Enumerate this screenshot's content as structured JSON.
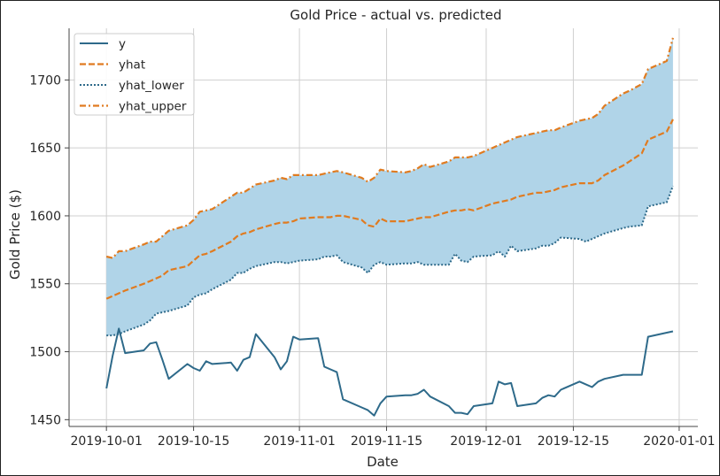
{
  "chart_data": {
    "type": "line",
    "title": "Gold Price - actual vs. predicted",
    "xlabel": "Date",
    "ylabel": "Gold Price ($)",
    "xlim": [
      "2019-09-25",
      "2020-01-04"
    ],
    "ylim": [
      1445,
      1738
    ],
    "x_ticks": [
      "2019-10-01",
      "2019-10-15",
      "2019-11-01",
      "2019-11-15",
      "2019-12-01",
      "2019-12-15",
      "2020-01-01"
    ],
    "y_ticks": [
      1450,
      1500,
      1550,
      1600,
      1650,
      1700
    ],
    "grid": true,
    "legend_position": "top-left",
    "colors": {
      "y": "#2e6a8a",
      "yhat": "#e07b20",
      "yhat_lower": "#2e6a8a",
      "yhat_upper": "#e07b20",
      "band": "#b0d4e8"
    },
    "series": [
      {
        "name": "y",
        "style": "solid",
        "points": [
          [
            "2019-10-01",
            1473
          ],
          [
            "2019-10-02",
            1497
          ],
          [
            "2019-10-03",
            1517
          ],
          [
            "2019-10-04",
            1499
          ],
          [
            "2019-10-07",
            1501
          ],
          [
            "2019-10-08",
            1506
          ],
          [
            "2019-10-09",
            1507
          ],
          [
            "2019-10-10",
            1494
          ],
          [
            "2019-10-11",
            1480
          ],
          [
            "2019-10-14",
            1491
          ],
          [
            "2019-10-15",
            1488
          ],
          [
            "2019-10-16",
            1486
          ],
          [
            "2019-10-17",
            1493
          ],
          [
            "2019-10-18",
            1491
          ],
          [
            "2019-10-21",
            1492
          ],
          [
            "2019-10-22",
            1486
          ],
          [
            "2019-10-23",
            1494
          ],
          [
            "2019-10-24",
            1496
          ],
          [
            "2019-10-25",
            1513
          ],
          [
            "2019-10-28",
            1496
          ],
          [
            "2019-10-29",
            1487
          ],
          [
            "2019-10-30",
            1493
          ],
          [
            "2019-10-31",
            1511
          ],
          [
            "2019-11-01",
            1509
          ],
          [
            "2019-11-04",
            1510
          ],
          [
            "2019-11-05",
            1489
          ],
          [
            "2019-11-06",
            1487
          ],
          [
            "2019-11-07",
            1485
          ],
          [
            "2019-11-08",
            1465
          ],
          [
            "2019-11-11",
            1459
          ],
          [
            "2019-11-12",
            1457
          ],
          [
            "2019-11-13",
            1453
          ],
          [
            "2019-11-14",
            1462
          ],
          [
            "2019-11-15",
            1467
          ],
          [
            "2019-11-18",
            1468
          ],
          [
            "2019-11-19",
            1468
          ],
          [
            "2019-11-20",
            1469
          ],
          [
            "2019-11-21",
            1472
          ],
          [
            "2019-11-22",
            1467
          ],
          [
            "2019-11-25",
            1460
          ],
          [
            "2019-11-26",
            1455
          ],
          [
            "2019-11-27",
            1455
          ],
          [
            "2019-11-28",
            1454
          ],
          [
            "2019-11-29",
            1460
          ],
          [
            "2019-12-02",
            1462
          ],
          [
            "2019-12-03",
            1478
          ],
          [
            "2019-12-04",
            1476
          ],
          [
            "2019-12-05",
            1477
          ],
          [
            "2019-12-06",
            1460
          ],
          [
            "2019-12-09",
            1462
          ],
          [
            "2019-12-10",
            1466
          ],
          [
            "2019-12-11",
            1468
          ],
          [
            "2019-12-12",
            1467
          ],
          [
            "2019-12-13",
            1472
          ],
          [
            "2019-12-16",
            1478
          ],
          [
            "2019-12-17",
            1476
          ],
          [
            "2019-12-18",
            1474
          ],
          [
            "2019-12-19",
            1478
          ],
          [
            "2019-12-20",
            1480
          ],
          [
            "2019-12-23",
            1483
          ],
          [
            "2019-12-24",
            1483
          ],
          [
            "2019-12-26",
            1483
          ],
          [
            "2019-12-27",
            1511
          ],
          [
            "2019-12-30",
            1514
          ],
          [
            "2019-12-31",
            1515
          ]
        ]
      },
      {
        "name": "yhat",
        "style": "dashed",
        "points": [
          [
            "2019-10-01",
            1539
          ],
          [
            "2019-10-02",
            1541
          ],
          [
            "2019-10-03",
            1543
          ],
          [
            "2019-10-04",
            1545
          ],
          [
            "2019-10-07",
            1550
          ],
          [
            "2019-10-08",
            1552
          ],
          [
            "2019-10-09",
            1554
          ],
          [
            "2019-10-10",
            1556
          ],
          [
            "2019-10-11",
            1560
          ],
          [
            "2019-10-14",
            1563
          ],
          [
            "2019-10-15",
            1567
          ],
          [
            "2019-10-16",
            1571
          ],
          [
            "2019-10-17",
            1572
          ],
          [
            "2019-10-18",
            1574
          ],
          [
            "2019-10-21",
            1581
          ],
          [
            "2019-10-22",
            1585
          ],
          [
            "2019-10-23",
            1587
          ],
          [
            "2019-10-24",
            1588
          ],
          [
            "2019-10-25",
            1590
          ],
          [
            "2019-10-28",
            1594
          ],
          [
            "2019-10-29",
            1595
          ],
          [
            "2019-10-30",
            1595
          ],
          [
            "2019-10-31",
            1596
          ],
          [
            "2019-11-01",
            1598
          ],
          [
            "2019-11-04",
            1599
          ],
          [
            "2019-11-05",
            1599
          ],
          [
            "2019-11-06",
            1599
          ],
          [
            "2019-11-07",
            1600
          ],
          [
            "2019-11-08",
            1600
          ],
          [
            "2019-11-11",
            1597
          ],
          [
            "2019-11-12",
            1593
          ],
          [
            "2019-11-13",
            1592
          ],
          [
            "2019-11-14",
            1598
          ],
          [
            "2019-11-15",
            1596
          ],
          [
            "2019-11-18",
            1596
          ],
          [
            "2019-11-19",
            1597
          ],
          [
            "2019-11-20",
            1598
          ],
          [
            "2019-11-21",
            1599
          ],
          [
            "2019-11-22",
            1599
          ],
          [
            "2019-11-25",
            1603
          ],
          [
            "2019-11-26",
            1604
          ],
          [
            "2019-11-27",
            1604
          ],
          [
            "2019-11-28",
            1605
          ],
          [
            "2019-11-29",
            1604
          ],
          [
            "2019-12-02",
            1609
          ],
          [
            "2019-12-03",
            1610
          ],
          [
            "2019-12-04",
            1611
          ],
          [
            "2019-12-05",
            1612
          ],
          [
            "2019-12-06",
            1614
          ],
          [
            "2019-12-09",
            1617
          ],
          [
            "2019-12-10",
            1617
          ],
          [
            "2019-12-11",
            1618
          ],
          [
            "2019-12-12",
            1619
          ],
          [
            "2019-12-13",
            1621
          ],
          [
            "2019-12-16",
            1624
          ],
          [
            "2019-12-17",
            1624
          ],
          [
            "2019-12-18",
            1624
          ],
          [
            "2019-12-19",
            1626
          ],
          [
            "2019-12-20",
            1630
          ],
          [
            "2019-12-23",
            1637
          ],
          [
            "2019-12-24",
            1640
          ],
          [
            "2019-12-26",
            1646
          ],
          [
            "2019-12-27",
            1656
          ],
          [
            "2019-12-30",
            1662
          ],
          [
            "2019-12-31",
            1671
          ]
        ]
      },
      {
        "name": "yhat_lower",
        "style": "dotted",
        "points": [
          [
            "2019-10-01",
            1512
          ],
          [
            "2019-10-02",
            1512
          ],
          [
            "2019-10-03",
            1513
          ],
          [
            "2019-10-04",
            1515
          ],
          [
            "2019-10-07",
            1520
          ],
          [
            "2019-10-08",
            1523
          ],
          [
            "2019-10-09",
            1528
          ],
          [
            "2019-10-10",
            1529
          ],
          [
            "2019-10-11",
            1530
          ],
          [
            "2019-10-14",
            1534
          ],
          [
            "2019-10-15",
            1540
          ],
          [
            "2019-10-16",
            1542
          ],
          [
            "2019-10-17",
            1543
          ],
          [
            "2019-10-18",
            1546
          ],
          [
            "2019-10-21",
            1553
          ],
          [
            "2019-10-22",
            1558
          ],
          [
            "2019-10-23",
            1558
          ],
          [
            "2019-10-24",
            1561
          ],
          [
            "2019-10-25",
            1563
          ],
          [
            "2019-10-28",
            1566
          ],
          [
            "2019-10-29",
            1566
          ],
          [
            "2019-10-30",
            1565
          ],
          [
            "2019-10-31",
            1566
          ],
          [
            "2019-11-01",
            1567
          ],
          [
            "2019-11-04",
            1568
          ],
          [
            "2019-11-05",
            1570
          ],
          [
            "2019-11-06",
            1570
          ],
          [
            "2019-11-07",
            1571
          ],
          [
            "2019-11-08",
            1566
          ],
          [
            "2019-11-11",
            1562
          ],
          [
            "2019-11-12",
            1558
          ],
          [
            "2019-11-13",
            1564
          ],
          [
            "2019-11-14",
            1566
          ],
          [
            "2019-11-15",
            1564
          ],
          [
            "2019-11-18",
            1565
          ],
          [
            "2019-11-19",
            1565
          ],
          [
            "2019-11-20",
            1566
          ],
          [
            "2019-11-21",
            1564
          ],
          [
            "2019-11-22",
            1564
          ],
          [
            "2019-11-25",
            1564
          ],
          [
            "2019-11-26",
            1572
          ],
          [
            "2019-11-27",
            1567
          ],
          [
            "2019-11-28",
            1566
          ],
          [
            "2019-11-29",
            1570
          ],
          [
            "2019-12-02",
            1571
          ],
          [
            "2019-12-03",
            1574
          ],
          [
            "2019-12-04",
            1570
          ],
          [
            "2019-12-05",
            1578
          ],
          [
            "2019-12-06",
            1574
          ],
          [
            "2019-12-09",
            1576
          ],
          [
            "2019-12-10",
            1578
          ],
          [
            "2019-12-11",
            1578
          ],
          [
            "2019-12-12",
            1580
          ],
          [
            "2019-12-13",
            1584
          ],
          [
            "2019-12-16",
            1583
          ],
          [
            "2019-12-17",
            1581
          ],
          [
            "2019-12-18",
            1583
          ],
          [
            "2019-12-19",
            1585
          ],
          [
            "2019-12-20",
            1587
          ],
          [
            "2019-12-23",
            1591
          ],
          [
            "2019-12-24",
            1592
          ],
          [
            "2019-12-26",
            1593
          ],
          [
            "2019-12-27",
            1607
          ],
          [
            "2019-12-30",
            1610
          ],
          [
            "2019-12-31",
            1622
          ]
        ]
      },
      {
        "name": "yhat_upper",
        "style": "dashdot",
        "points": [
          [
            "2019-10-01",
            1570
          ],
          [
            "2019-10-02",
            1569
          ],
          [
            "2019-10-03",
            1574
          ],
          [
            "2019-10-04",
            1574
          ],
          [
            "2019-10-07",
            1579
          ],
          [
            "2019-10-08",
            1581
          ],
          [
            "2019-10-09",
            1581
          ],
          [
            "2019-10-10",
            1585
          ],
          [
            "2019-10-11",
            1589
          ],
          [
            "2019-10-14",
            1593
          ],
          [
            "2019-10-15",
            1597
          ],
          [
            "2019-10-16",
            1603
          ],
          [
            "2019-10-17",
            1604
          ],
          [
            "2019-10-18",
            1605
          ],
          [
            "2019-10-21",
            1614
          ],
          [
            "2019-10-22",
            1617
          ],
          [
            "2019-10-23",
            1617
          ],
          [
            "2019-10-24",
            1620
          ],
          [
            "2019-10-25",
            1623
          ],
          [
            "2019-10-28",
            1626
          ],
          [
            "2019-10-29",
            1628
          ],
          [
            "2019-10-30",
            1627
          ],
          [
            "2019-10-31",
            1630
          ],
          [
            "2019-11-01",
            1630
          ],
          [
            "2019-11-04",
            1630
          ],
          [
            "2019-11-05",
            1631
          ],
          [
            "2019-11-06",
            1632
          ],
          [
            "2019-11-07",
            1633
          ],
          [
            "2019-11-08",
            1632
          ],
          [
            "2019-11-11",
            1628
          ],
          [
            "2019-11-12",
            1625
          ],
          [
            "2019-11-13",
            1628
          ],
          [
            "2019-11-14",
            1634
          ],
          [
            "2019-11-15",
            1633
          ],
          [
            "2019-11-18",
            1632
          ],
          [
            "2019-11-19",
            1633
          ],
          [
            "2019-11-20",
            1635
          ],
          [
            "2019-11-21",
            1638
          ],
          [
            "2019-11-22",
            1636
          ],
          [
            "2019-11-25",
            1640
          ],
          [
            "2019-11-26",
            1643
          ],
          [
            "2019-11-27",
            1643
          ],
          [
            "2019-11-28",
            1643
          ],
          [
            "2019-11-29",
            1644
          ],
          [
            "2019-12-02",
            1650
          ],
          [
            "2019-12-03",
            1652
          ],
          [
            "2019-12-04",
            1654
          ],
          [
            "2019-12-05",
            1656
          ],
          [
            "2019-12-06",
            1658
          ],
          [
            "2019-12-09",
            1661
          ],
          [
            "2019-12-10",
            1662
          ],
          [
            "2019-12-11",
            1663
          ],
          [
            "2019-12-12",
            1663
          ],
          [
            "2019-12-13",
            1665
          ],
          [
            "2019-12-16",
            1670
          ],
          [
            "2019-12-17",
            1671
          ],
          [
            "2019-12-18",
            1672
          ],
          [
            "2019-12-19",
            1675
          ],
          [
            "2019-12-20",
            1681
          ],
          [
            "2019-12-23",
            1690
          ],
          [
            "2019-12-24",
            1692
          ],
          [
            "2019-12-26",
            1697
          ],
          [
            "2019-12-27",
            1708
          ],
          [
            "2019-12-30",
            1714
          ],
          [
            "2019-12-31",
            1731
          ]
        ]
      }
    ],
    "band": {
      "lower": "yhat_lower",
      "upper": "yhat_upper"
    }
  }
}
